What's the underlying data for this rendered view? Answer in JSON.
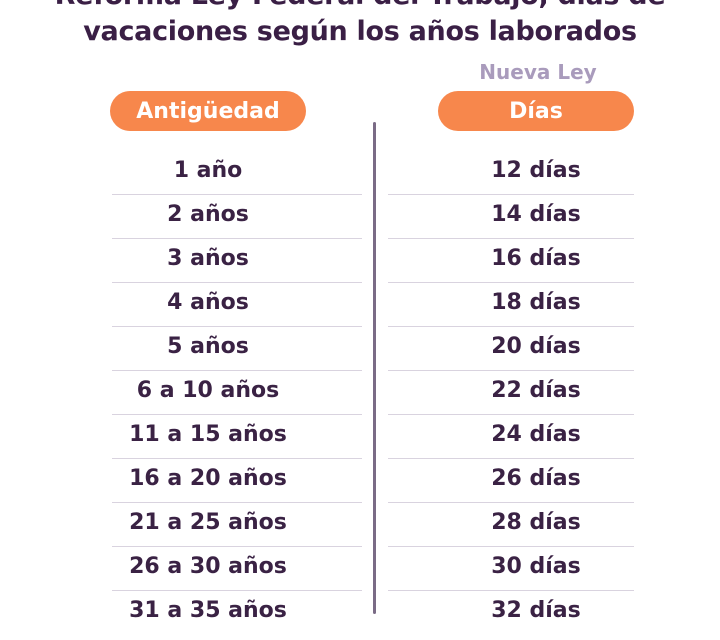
{
  "title": {
    "line1": "Reforma Ley Federal del Trabajo, días de",
    "line2": "vacaciones según los años laborados"
  },
  "columns": {
    "left_header": "Antigüedad",
    "right_super": "Nueva Ley",
    "right_header": "Días"
  },
  "colors": {
    "accent": "#f7874c",
    "text": "#3a2244",
    "muted": "#a99bbc",
    "divider": "#7a6b86"
  },
  "chart_data": {
    "type": "table",
    "title": "Reforma Ley Federal del Trabajo, días de vacaciones según los años laborados",
    "columns": [
      "Antigüedad",
      "Días"
    ],
    "rows": [
      [
        "1 año",
        "12 días"
      ],
      [
        "2 años",
        "14 días"
      ],
      [
        "3 años",
        "16 días"
      ],
      [
        "4 años",
        "18 días"
      ],
      [
        "5 años",
        "20 días"
      ],
      [
        "6 a 10 años",
        "22 días"
      ],
      [
        "11 a 15 años",
        "24 días"
      ],
      [
        "16 a 20 años",
        "26 días"
      ],
      [
        "21 a 25 años",
        "28 días"
      ],
      [
        "26 a 30 años",
        "30 días"
      ],
      [
        "31 a 35 años",
        "32 días"
      ]
    ]
  }
}
